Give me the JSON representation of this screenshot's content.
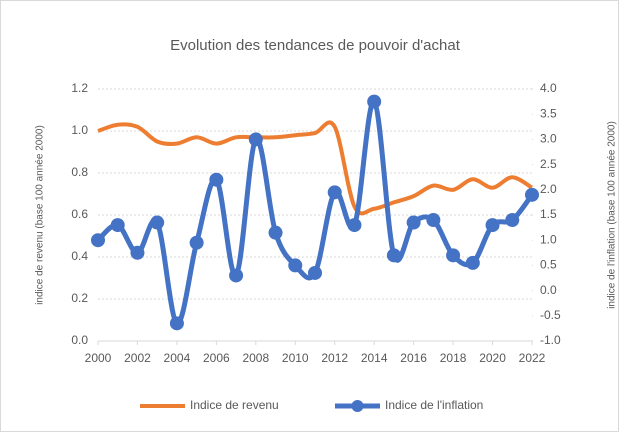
{
  "chart_data": {
    "type": "line",
    "title": "Evolution des tendances de pouvoir d'achat",
    "y_label": "indice de revenu (base 100 année 2000)",
    "y2_label": "indice de l'inflation (base 100 année 2000)",
    "x": [
      2000,
      2001,
      2002,
      2003,
      2004,
      2005,
      2006,
      2007,
      2008,
      2009,
      2010,
      2011,
      2012,
      2013,
      2014,
      2015,
      2016,
      2017,
      2018,
      2019,
      2020,
      2021,
      2022
    ],
    "xlim": [
      2000,
      2022
    ],
    "xticks": [
      2000,
      2002,
      2004,
      2006,
      2008,
      2010,
      2012,
      2014,
      2016,
      2018,
      2020,
      2022
    ],
    "ylim": [
      0,
      1.2
    ],
    "yticks": [
      {
        "value": 0,
        "label": "0.0"
      },
      {
        "value": 0.2,
        "label": "0.2"
      },
      {
        "value": 0.4,
        "label": "0.4"
      },
      {
        "value": 0.6,
        "label": "0.6"
      },
      {
        "value": 0.8,
        "label": "0.8"
      },
      {
        "value": 1,
        "label": "1.0"
      },
      {
        "value": 1.2,
        "label": "1.2"
      }
    ],
    "y2lim": [
      -1,
      4
    ],
    "y2ticks": [
      {
        "value": -1,
        "label": "-1.0"
      },
      {
        "value": -0.5,
        "label": "-0.5"
      },
      {
        "value": 0,
        "label": "0.0"
      },
      {
        "value": 0.5,
        "label": "0.5"
      },
      {
        "value": 1,
        "label": "1.0"
      },
      {
        "value": 1.5,
        "label": "1.5"
      },
      {
        "value": 2,
        "label": "2.0"
      },
      {
        "value": 2.5,
        "label": "2.5"
      },
      {
        "value": 3,
        "label": "3.0"
      },
      {
        "value": 3.5,
        "label": "3.5"
      },
      {
        "value": 4,
        "label": "4.0"
      }
    ],
    "grid": true,
    "smooth": true,
    "legend": "bottom",
    "series": [
      {
        "name": "Indice de revenu",
        "color": "#ED7D31",
        "values": [
          1.0,
          1.03,
          1.02,
          0.95,
          0.94,
          0.97,
          0.94,
          0.97,
          0.97,
          0.97,
          0.98,
          0.99,
          1.02,
          0.64,
          0.63,
          0.66,
          0.69,
          0.74,
          0.72,
          0.77,
          0.73,
          0.78,
          0.73
        ]
      },
      {
        "name": "Indice de l'inflation",
        "color": "#4472C4",
        "axis": "y2",
        "markers": true,
        "values": [
          1.0,
          1.3,
          0.75,
          1.35,
          -0.65,
          0.95,
          2.2,
          0.3,
          3.0,
          1.15,
          0.5,
          0.35,
          1.95,
          1.3,
          3.75,
          0.7,
          1.35,
          1.4,
          0.7,
          0.55,
          1.3,
          1.4,
          1.9
        ]
      }
    ]
  }
}
